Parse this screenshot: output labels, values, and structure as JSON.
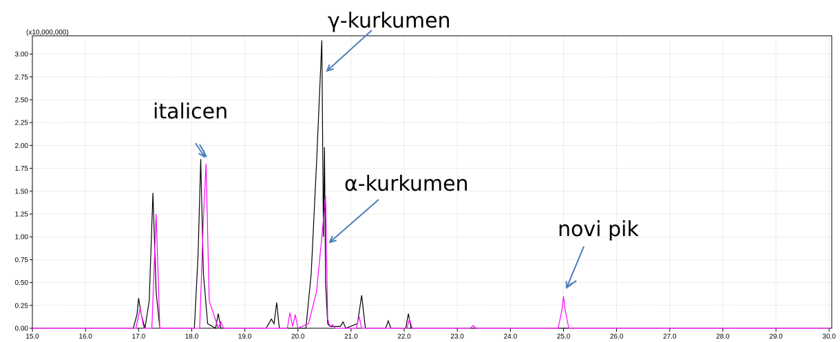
{
  "chart_data": {
    "type": "line",
    "ylabel": "(x10,000,000)",
    "xlim": [
      15.0,
      30.05
    ],
    "ylim": [
      0,
      3.2
    ],
    "xticks": [
      {
        "value": 15,
        "label": "15.0"
      },
      {
        "value": 16,
        "label": "16.0"
      },
      {
        "value": 17,
        "label": "17.0"
      },
      {
        "value": 18,
        "label": "18.0"
      },
      {
        "value": 19,
        "label": "19.0"
      },
      {
        "value": 20,
        "label": "20.0"
      },
      {
        "value": 21,
        "label": "21.0"
      },
      {
        "value": 22,
        "label": "22.0"
      },
      {
        "value": 23,
        "label": "23.0"
      },
      {
        "value": 24,
        "label": "24.0"
      },
      {
        "value": 25,
        "label": "25.0"
      },
      {
        "value": 26,
        "label": "26.0"
      },
      {
        "value": 27,
        "label": "27.0"
      },
      {
        "value": 28,
        "label": "28.0"
      },
      {
        "value": 29,
        "label": "29.0"
      },
      {
        "value": 30,
        "label": "30.0"
      }
    ],
    "yticks": [
      {
        "value": 0,
        "label": "0.00"
      },
      {
        "value": 0.25,
        "label": "0.25"
      },
      {
        "value": 0.5,
        "label": "0.50"
      },
      {
        "value": 0.75,
        "label": "0.75"
      },
      {
        "value": 1,
        "label": "1.00"
      },
      {
        "value": 1.25,
        "label": "1.25"
      },
      {
        "value": 1.5,
        "label": "1.50"
      },
      {
        "value": 1.75,
        "label": "1.75"
      },
      {
        "value": 2,
        "label": "2.00"
      },
      {
        "value": 2.25,
        "label": "2.25"
      },
      {
        "value": 2.5,
        "label": "2.50"
      },
      {
        "value": 2.75,
        "label": "2.75"
      },
      {
        "value": 3,
        "label": "3.00"
      }
    ],
    "grid": true,
    "series": [
      {
        "color": "#000000",
        "x": [
          15.0,
          16.9,
          16.97,
          17.0,
          17.05,
          17.12,
          17.2,
          17.27,
          17.33,
          17.4,
          18.05,
          18.12,
          18.17,
          18.22,
          18.3,
          18.45,
          18.5,
          18.55,
          19.4,
          19.5,
          19.55,
          19.6,
          19.65,
          20.15,
          20.25,
          20.35,
          20.45,
          20.48,
          20.5,
          20.52,
          20.56,
          20.6,
          20.8,
          20.85,
          20.9,
          21.12,
          21.2,
          21.27,
          21.65,
          21.7,
          21.75,
          22.03,
          22.08,
          22.13,
          30.0
        ],
        "values": [
          0,
          0,
          0.15,
          0.33,
          0.15,
          0,
          0.3,
          1.48,
          0.4,
          0,
          0,
          0.8,
          1.85,
          0.6,
          0.05,
          0,
          0.16,
          0,
          0,
          0.1,
          0.05,
          0.28,
          0,
          0,
          0.6,
          1.8,
          3.15,
          1.0,
          1.98,
          0.5,
          0.05,
          0.02,
          0.02,
          0.07,
          0,
          0.05,
          0.36,
          0,
          0,
          0.08,
          0,
          0,
          0.16,
          0,
          0
        ]
      },
      {
        "color": "#ff00ff",
        "x": [
          15.0,
          16.95,
          17.03,
          17.1,
          17.25,
          17.33,
          17.4,
          18.15,
          18.22,
          18.27,
          18.33,
          18.5,
          18.55,
          18.6,
          19.8,
          19.85,
          19.9,
          19.95,
          20.0,
          20.2,
          20.35,
          20.45,
          20.52,
          20.56,
          20.6,
          20.65,
          20.7,
          21.1,
          21.15,
          21.2,
          22.05,
          22.1,
          22.15,
          23.25,
          23.3,
          23.35,
          24.9,
          24.97,
          25.0,
          25.03,
          25.1,
          30.0
        ],
        "values": [
          0,
          0,
          0.22,
          0,
          0,
          1.25,
          0,
          0,
          1.2,
          1.8,
          0.3,
          0,
          0.07,
          0,
          0,
          0.17,
          0.02,
          0.15,
          0,
          0.05,
          0.4,
          1.0,
          1.45,
          0.1,
          0.02,
          0.04,
          0,
          0,
          0.13,
          0,
          0,
          0.1,
          0,
          0,
          0.03,
          0,
          0,
          0.2,
          0.35,
          0.2,
          0,
          0
        ]
      }
    ],
    "annotations": [
      {
        "text": "γ-kurkumen"
      },
      {
        "text": "italicen"
      },
      {
        "text": "α-kurkumen"
      },
      {
        "text": "novi pik"
      }
    ],
    "annotation_color": "#4a7ebb"
  }
}
